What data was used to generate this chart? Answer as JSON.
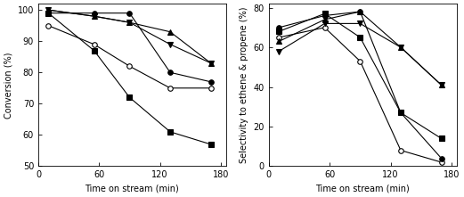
{
  "x_points": [
    10,
    55,
    90,
    130,
    170
  ],
  "conv_square_filled": [
    99,
    87,
    72,
    61,
    57
  ],
  "conv_circle_filled": [
    99,
    99,
    99,
    80,
    77
  ],
  "conv_circle_open": [
    95,
    89,
    82,
    75,
    75
  ],
  "conv_tri_up": [
    100,
    98,
    96,
    93,
    83
  ],
  "conv_tri_down": [
    100,
    98,
    96,
    89,
    83
  ],
  "sel_square_filled": [
    68,
    77,
    65,
    27,
    14
  ],
  "sel_circle_filled": [
    70,
    76,
    78,
    27,
    4
  ],
  "sel_circle_open": [
    65,
    70,
    53,
    8,
    2
  ],
  "sel_tri_up": [
    63,
    74,
    78,
    60,
    41
  ],
  "sel_tri_down": [
    58,
    72,
    72,
    60,
    41
  ],
  "conv_ylim": [
    50,
    102
  ],
  "sel_ylim": [
    0,
    82
  ],
  "conv_yticks": [
    50,
    60,
    70,
    80,
    90,
    100
  ],
  "sel_yticks": [
    0,
    20,
    40,
    60,
    80
  ],
  "xlim": [
    0,
    185
  ],
  "xticks": [
    0,
    60,
    120,
    180
  ],
  "xlabel": "Time on stream (min)",
  "conv_ylabel": "Conversion (%)",
  "sel_ylabel": "Selectivity to ethene & propene (%)",
  "color": "black",
  "linewidth": 0.8,
  "markersize": 4,
  "markeredgewidth": 0.8
}
